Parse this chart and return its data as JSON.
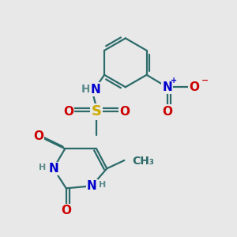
{
  "bg_color": "#e8e8e8",
  "bond_color": "#2d6b6b",
  "bond_width": 1.6,
  "atom_colors": {
    "C": "#2d6b6b",
    "N": "#0000cc",
    "O": "#cc0000",
    "S": "#ccaa00",
    "H": "#5a8a8a"
  },
  "fs_large": 11,
  "fs_medium": 10,
  "fs_small": 8
}
